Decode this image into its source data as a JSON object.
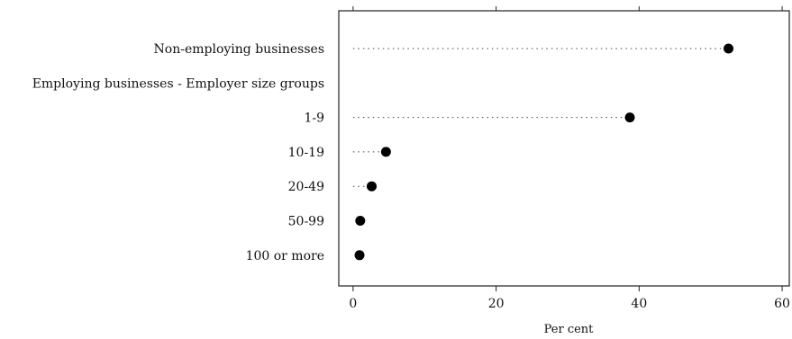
{
  "chart_data": {
    "type": "scatter",
    "title": "",
    "xlabel": "Per cent",
    "ylabel": "",
    "xlim": [
      -2,
      61
    ],
    "xticks": [
      0,
      20,
      40,
      60
    ],
    "grid": false,
    "categories": [
      "Non-employing businesses",
      "Employing businesses - Employer size groups",
      "1-9",
      "10-19",
      "20-49",
      "50-99",
      "100 or more"
    ],
    "values": [
      52.5,
      null,
      38.7,
      4.6,
      2.6,
      1.0,
      0.9
    ]
  }
}
